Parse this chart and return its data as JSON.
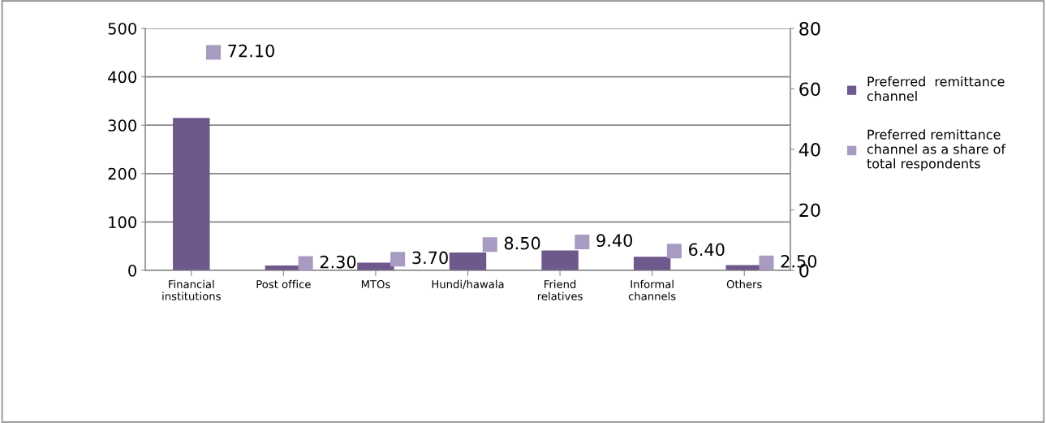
{
  "chart_data": {
    "type": "bar",
    "categories": [
      "Financial\ninstitutions",
      "Post office",
      "MTOs",
      "Hundi/hawala",
      "Friend\nrelatives",
      "Informal\nchannels",
      "Others"
    ],
    "series": [
      {
        "name": "Preferred  remittance\nchannel",
        "color": "#6f588c",
        "values": [
          315,
          10,
          16,
          37,
          41,
          28,
          11
        ]
      },
      {
        "name": "Preferred remittance\nchannel as a share of\ntotal respondents",
        "color": "#a89bc2",
        "type": "scatter",
        "axis": "y2",
        "marker": "square",
        "values": [
          72.1,
          2.3,
          3.7,
          8.5,
          9.4,
          6.4,
          2.5
        ],
        "value_labels": [
          "72.10",
          "2.30",
          "3.70",
          "8.50",
          "9.40",
          "6.40",
          "2.50"
        ]
      }
    ],
    "ylim": [
      0,
      500
    ],
    "yticks": [
      0,
      100,
      200,
      300,
      400,
      500
    ],
    "y2lim": [
      0,
      80
    ],
    "y2ticks": [
      0,
      20,
      40,
      60,
      80
    ],
    "grid": "y",
    "legend": "right"
  }
}
